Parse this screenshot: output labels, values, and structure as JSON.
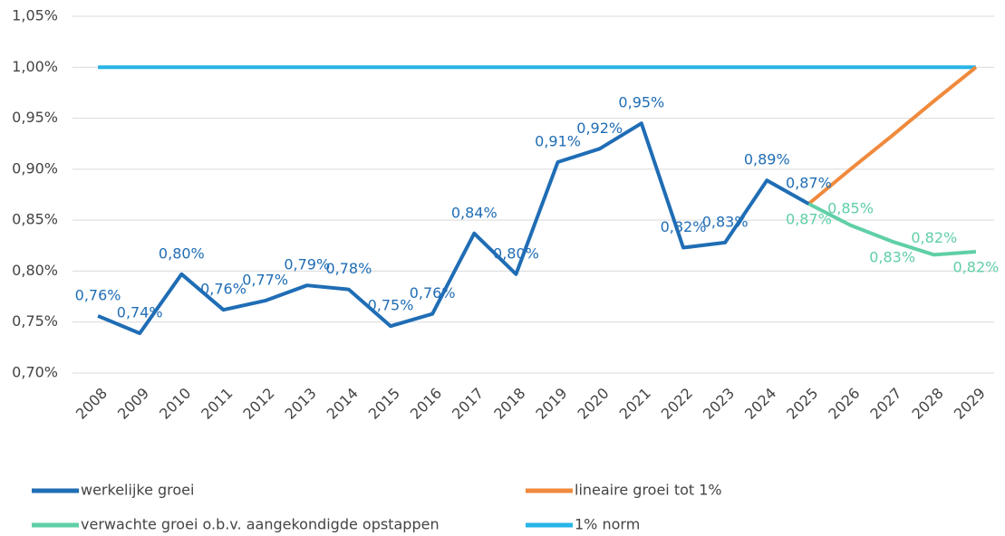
{
  "chart_data": {
    "type": "line",
    "categories": [
      "2008",
      "2009",
      "2010",
      "2011",
      "2012",
      "2013",
      "2014",
      "2015",
      "2016",
      "2017",
      "2018",
      "2019",
      "2020",
      "2021",
      "2022",
      "2023",
      "2024",
      "2025",
      "2026",
      "2027",
      "2028",
      "2029"
    ],
    "series": [
      {
        "name": "werkelijke groei",
        "color": "#1f6db5",
        "values": [
          0.756,
          0.739,
          0.797,
          0.762,
          0.771,
          0.786,
          0.782,
          0.746,
          0.758,
          0.837,
          0.797,
          0.907,
          0.92,
          0.945,
          0.823,
          0.828,
          0.889,
          0.866,
          null,
          null,
          null,
          null
        ],
        "value_labels": [
          "0,76%",
          "0,74%",
          "0,80%",
          "0,76%",
          "0,77%",
          "0,79%",
          "0,78%",
          "0,75%",
          "0,76%",
          "0,84%",
          "0,80%",
          "0,91%",
          "0,92%",
          "0,95%",
          "0,82%",
          "0,83%",
          "0,89%",
          "0,87%",
          null,
          null,
          null,
          null
        ]
      },
      {
        "name": "lineaire groei tot 1%",
        "color": "#f08a3c",
        "values": [
          null,
          null,
          null,
          null,
          null,
          null,
          null,
          null,
          null,
          null,
          null,
          null,
          null,
          null,
          null,
          null,
          null,
          0.866,
          0.9,
          0.933,
          0.967,
          1.0
        ]
      },
      {
        "name": "verwachte groei o.b.v. aangekondigde opstappen",
        "color": "#5fcfa6",
        "values": [
          null,
          null,
          null,
          null,
          null,
          null,
          null,
          null,
          null,
          null,
          null,
          null,
          null,
          null,
          null,
          null,
          null,
          0.866,
          0.845,
          0.829,
          0.816,
          0.819
        ],
        "value_labels": [
          null,
          null,
          null,
          null,
          null,
          null,
          null,
          null,
          null,
          null,
          null,
          null,
          null,
          null,
          null,
          null,
          null,
          "0,87%",
          "0,85%",
          "0,83%",
          "0,82%",
          "0,82%"
        ]
      },
      {
        "name": "1% norm",
        "color": "#27b4e6",
        "values": [
          1,
          1,
          1,
          1,
          1,
          1,
          1,
          1,
          1,
          1,
          1,
          1,
          1,
          1,
          1,
          1,
          1,
          1,
          1,
          1,
          1,
          1
        ]
      }
    ],
    "ylim": [
      0.7,
      1.05
    ],
    "yticks": [
      {
        "value": 0.7,
        "label": "0,70%"
      },
      {
        "value": 0.75,
        "label": "0,75%"
      },
      {
        "value": 0.8,
        "label": "0,80%"
      },
      {
        "value": 0.85,
        "label": "0,85%"
      },
      {
        "value": 0.9,
        "label": "0,90%"
      },
      {
        "value": 0.95,
        "label": "0,95%"
      },
      {
        "value": 1.0,
        "label": "1,00%"
      },
      {
        "value": 1.05,
        "label": "1,05%"
      }
    ],
    "grid": true
  }
}
